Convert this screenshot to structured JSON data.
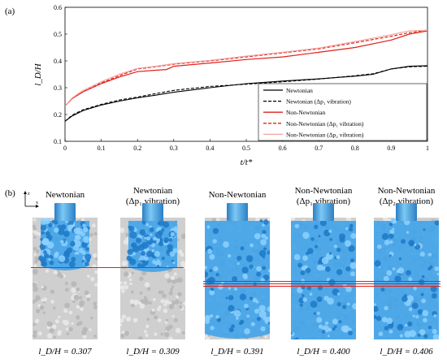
{
  "panel_a_label": "(a)",
  "panel_b_label": "(b)",
  "chart_data": {
    "type": "line",
    "xlabel": "t/t*",
    "ylabel": "l_D/H",
    "xlim": [
      0,
      1
    ],
    "ylim": [
      0.1,
      0.6
    ],
    "xticks": [
      "0",
      "0.1",
      "0.2",
      "0.3",
      "0.4",
      "0.5",
      "0.6",
      "0.7",
      "0.8",
      "0.9",
      "1"
    ],
    "yticks": [
      "0.1",
      "0.2",
      "0.3",
      "0.4",
      "0.5",
      "0.6"
    ],
    "legend_position": "bottom-right",
    "series": [
      {
        "name": "Newtonian",
        "color": "#000000",
        "dash": "solid",
        "x": [
          0,
          0.02,
          0.05,
          0.1,
          0.15,
          0.2,
          0.25,
          0.3,
          0.4,
          0.5,
          0.6,
          0.7,
          0.8,
          0.85,
          0.9,
          0.95,
          1.0
        ],
        "y": [
          0.175,
          0.195,
          0.215,
          0.235,
          0.25,
          0.262,
          0.272,
          0.283,
          0.3,
          0.315,
          0.325,
          0.333,
          0.343,
          0.35,
          0.37,
          0.38,
          0.382
        ]
      },
      {
        "name": "Newtonian (Δp₁ vibration)",
        "color": "#000000",
        "dash": "dashed",
        "x": [
          0,
          0.02,
          0.05,
          0.1,
          0.15,
          0.2,
          0.25,
          0.3,
          0.4,
          0.5,
          0.6,
          0.7,
          0.8,
          0.85,
          0.9,
          0.95,
          1.0
        ],
        "y": [
          0.175,
          0.198,
          0.218,
          0.238,
          0.254,
          0.265,
          0.278,
          0.29,
          0.305,
          0.313,
          0.322,
          0.332,
          0.345,
          0.352,
          0.37,
          0.378,
          0.38
        ]
      },
      {
        "name": "Non-Newtonian",
        "color": "#e0201a",
        "dash": "solid",
        "x": [
          0,
          0.02,
          0.05,
          0.1,
          0.15,
          0.2,
          0.25,
          0.28,
          0.3,
          0.4,
          0.5,
          0.6,
          0.7,
          0.8,
          0.9,
          0.95,
          1.0
        ],
        "y": [
          0.232,
          0.26,
          0.285,
          0.315,
          0.34,
          0.36,
          0.365,
          0.368,
          0.38,
          0.392,
          0.405,
          0.415,
          0.432,
          0.45,
          0.478,
          0.5,
          0.512
        ]
      },
      {
        "name": "Non-Newtonian (Δp₁ vibration)",
        "color": "#e0201a",
        "dash": "dashed",
        "x": [
          0,
          0.02,
          0.05,
          0.1,
          0.15,
          0.2,
          0.25,
          0.3,
          0.4,
          0.5,
          0.6,
          0.7,
          0.8,
          0.9,
          0.95,
          1.0
        ],
        "y": [
          0.232,
          0.26,
          0.285,
          0.318,
          0.345,
          0.37,
          0.378,
          0.388,
          0.4,
          0.415,
          0.43,
          0.445,
          0.468,
          0.492,
          0.505,
          0.515
        ]
      },
      {
        "name": "Non-Newtonian (Δp₂ vibration)",
        "color": "#f4a6a2",
        "dash": "solid",
        "x": [
          0,
          0.02,
          0.05,
          0.1,
          0.15,
          0.2,
          0.25,
          0.3,
          0.4,
          0.5,
          0.6,
          0.7,
          0.8,
          0.9,
          0.95,
          1.0
        ],
        "y": [
          0.232,
          0.262,
          0.29,
          0.322,
          0.35,
          0.372,
          0.38,
          0.39,
          0.402,
          0.418,
          0.432,
          0.448,
          0.472,
          0.498,
          0.512,
          0.514
        ]
      }
    ]
  },
  "simulations": [
    {
      "title_line1": "Newtonian",
      "title_line2": "",
      "caption": "l_D/H = 0.307",
      "fluid": "newtonian",
      "ratio": 0.307
    },
    {
      "title_line1": "Newtonian",
      "title_line2": "(Δp₁ vibration)",
      "caption": "l_D/H = 0.309",
      "fluid": "newtonian",
      "ratio": 0.309
    },
    {
      "title_line1": "Non-Newtonian",
      "title_line2": "",
      "caption": "l_D/H = 0.391",
      "fluid": "non-newtonian",
      "ratio": 0.391
    },
    {
      "title_line1": "Non-Newtonian",
      "title_line2": "(Δp₁ vibration)",
      "caption": "l_D/H = 0.400",
      "fluid": "non-newtonian",
      "ratio": 0.4
    },
    {
      "title_line1": "Non-Newtonian",
      "title_line2": "(Δp₂ vibration)",
      "caption": "l_D/H = 0.406",
      "fluid": "non-newtonian",
      "ratio": 0.406
    }
  ],
  "axes_icon": {
    "z": "z",
    "x": "x"
  },
  "colors": {
    "reference_line": "#e0201a",
    "fluid": "#3fa3ea",
    "nozzle": "#4aa8e0",
    "soil": "#cfcfcf"
  }
}
